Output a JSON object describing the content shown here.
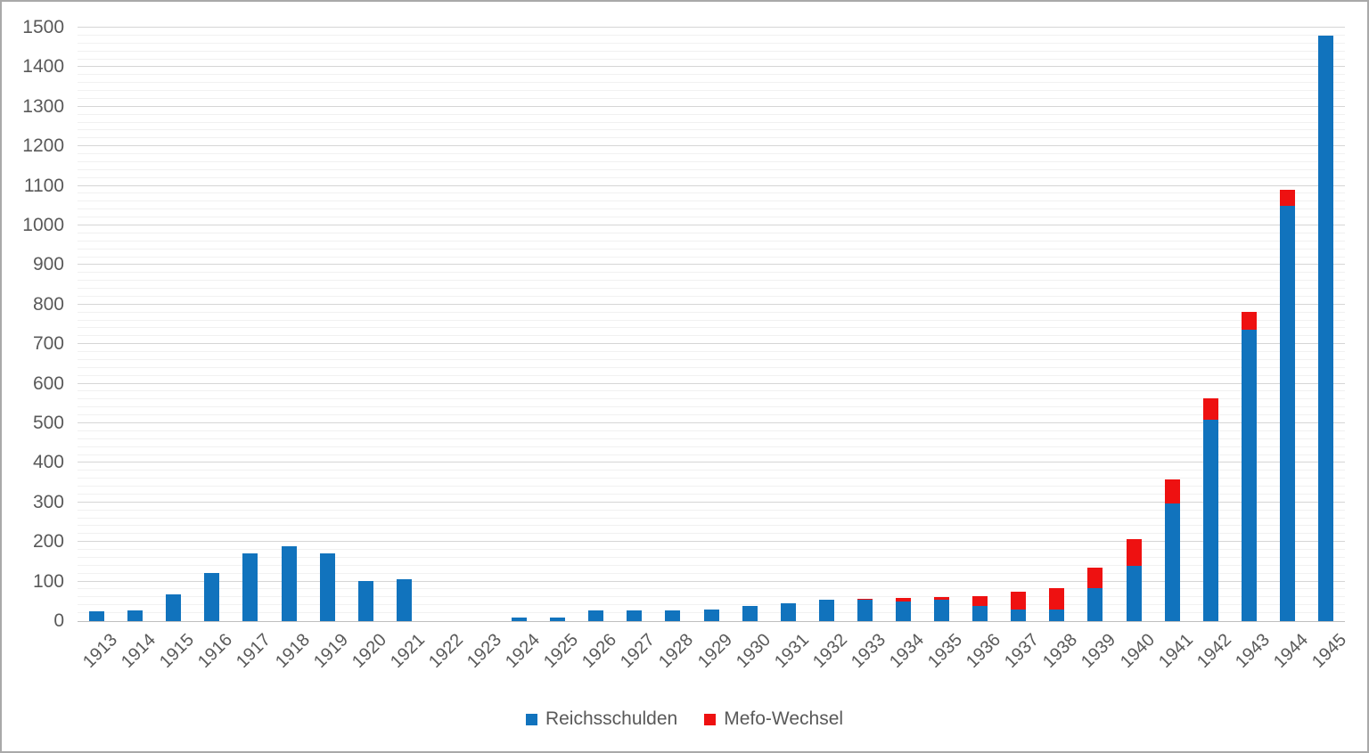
{
  "chart_data": {
    "type": "bar",
    "stacked": true,
    "title": "",
    "xlabel": "",
    "ylabel": "",
    "ylim": [
      0,
      1500
    ],
    "y_major_step": 100,
    "y_minor_step": 20,
    "y_ticks": [
      0,
      100,
      200,
      300,
      400,
      500,
      600,
      700,
      800,
      900,
      1000,
      1100,
      1200,
      1300,
      1400,
      1500
    ],
    "grid": true,
    "legend_position": "bottom",
    "categories": [
      "1913",
      "1914",
      "1915",
      "1916",
      "1917",
      "1918",
      "1919",
      "1920",
      "1921",
      "1922",
      "1923",
      "1924",
      "1925",
      "1926",
      "1927",
      "1928",
      "1929",
      "1930",
      "1931",
      "1932",
      "1933",
      "1934",
      "1935",
      "1936",
      "1937",
      "1938",
      "1939",
      "1940",
      "1941",
      "1942",
      "1943",
      "1944",
      "1945"
    ],
    "series": [
      {
        "name": "Reichsschulden",
        "color": "#1173bd",
        "values": [
          25,
          28,
          68,
          121,
          172,
          190,
          172,
          101,
          105,
          0,
          0,
          8,
          10,
          28,
          28,
          27,
          30,
          38,
          45,
          54,
          54,
          49,
          54,
          38,
          30,
          29,
          84,
          140,
          297,
          508,
          736,
          1050,
          1480
        ]
      },
      {
        "name": "Mefo-Wechsel",
        "color": "#ee1111",
        "values": [
          0,
          0,
          0,
          0,
          0,
          0,
          0,
          0,
          0,
          0,
          0,
          0,
          0,
          0,
          0,
          0,
          0,
          0,
          0,
          0,
          3,
          9,
          6,
          26,
          45,
          55,
          52,
          68,
          62,
          56,
          45,
          40,
          0
        ]
      }
    ]
  },
  "legend": {
    "items": [
      {
        "label": "Reichsschulden"
      },
      {
        "label": "Mefo-Wechsel"
      }
    ]
  }
}
